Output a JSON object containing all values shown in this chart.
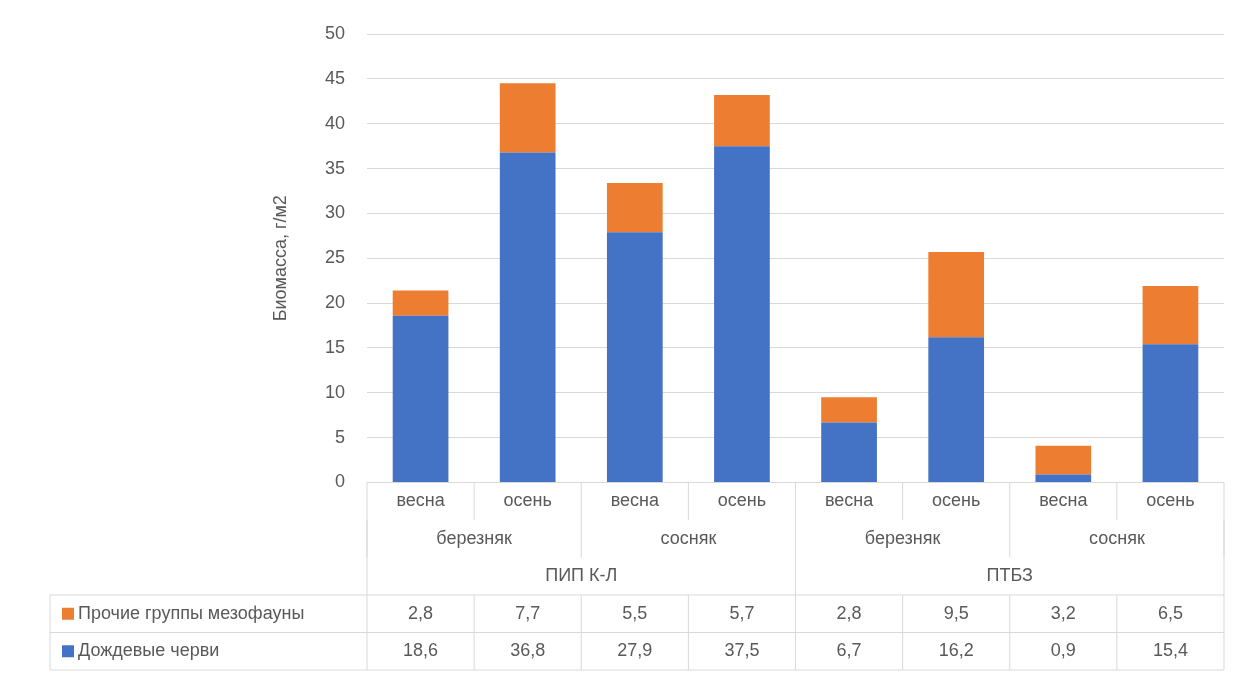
{
  "chart_data": {
    "type": "bar",
    "stacked": true,
    "ylabel": "Биомасса, г/м2",
    "categories": [
      "весна",
      "осень",
      "весна",
      "осень",
      "весна",
      "осень",
      "весна",
      "осень"
    ],
    "annotations": [
      "березняк",
      "сосняк",
      "березняк",
      "сосняк",
      "ПИП К-Л",
      "ПТБЗ"
    ],
    "series": [
      {
        "name": "Дождевые черви",
        "color": "#4472c4",
        "values": [
          18.6,
          36.8,
          27.9,
          37.5,
          6.7,
          16.2,
          0.9,
          15.4
        ],
        "value_labels": [
          "18,6",
          "36,8",
          "27,9",
          "37,5",
          "6,7",
          "16,2",
          "0,9",
          "15,4"
        ]
      },
      {
        "name": "Прочие группы мезофауны",
        "color": "#ed7d31",
        "values": [
          2.8,
          7.7,
          5.5,
          5.7,
          2.8,
          9.5,
          3.2,
          6.5
        ],
        "value_labels": [
          "2,8",
          "7,7",
          "5,5",
          "5,7",
          "2,8",
          "9,5",
          "3,2",
          "6,5"
        ]
      }
    ],
    "ylim": [
      0,
      50
    ],
    "yticks": [
      0,
      5,
      10,
      15,
      20,
      25,
      30,
      35,
      40,
      45,
      50
    ],
    "grid": "y",
    "legend": "bottom"
  }
}
